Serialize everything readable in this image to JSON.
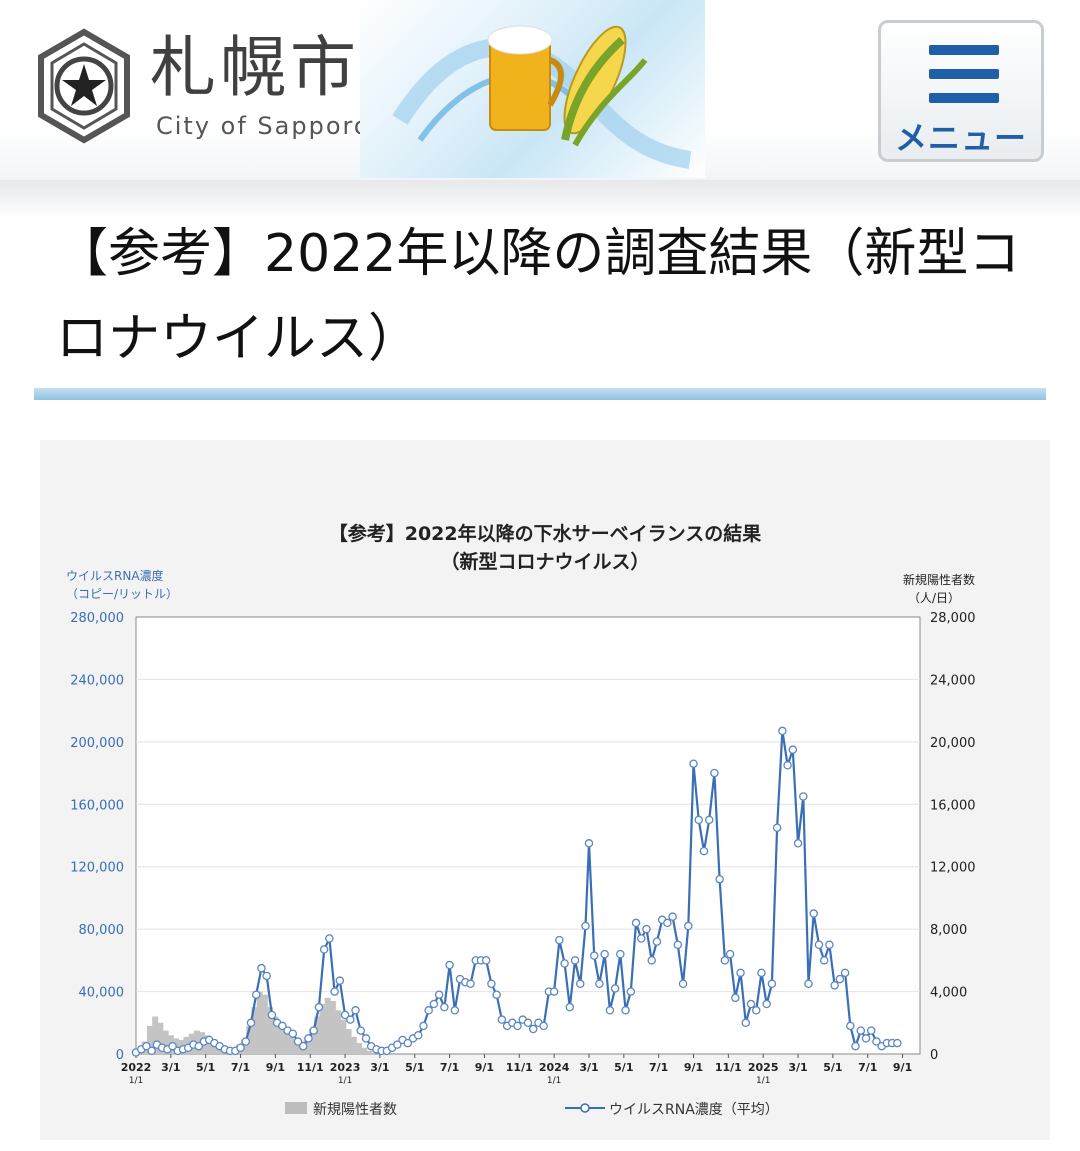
{
  "header": {
    "city_name": "札幌市",
    "city_name_en": "City of Sapporo",
    "menu_label": "メニュー"
  },
  "page": {
    "title": "【参考】2022年以降の調査結果（新型コロナウイルス）"
  },
  "colors": {
    "accent": "#1f5ea8",
    "line": "#3a6fb6",
    "bars": "#bdbdbd"
  },
  "icons": {
    "emblem": "sapporo-emblem-icon",
    "menu": "hamburger-icon"
  },
  "chart_data": {
    "type": "line",
    "title_line1": "【参考】2022年以降の下水サーベイランスの結果",
    "title_line2": "（新型コロナウイルス）",
    "ylabel_left_1": "ウイルスRNA濃度",
    "ylabel_left_2": "（コピー/リットル）",
    "ylabel_right_1": "新規陽性者数",
    "ylabel_right_2": "（人/日）",
    "ylim_left": [
      0,
      280000
    ],
    "ylim_right": [
      0,
      28000
    ],
    "yticks_left": [
      "0",
      "40,000",
      "80,000",
      "120,000",
      "160,000",
      "200,000",
      "240,000",
      "280,000"
    ],
    "yticks_right": [
      "0",
      "4,000",
      "8,000",
      "12,000",
      "16,000",
      "20,000",
      "24,000",
      "28,000"
    ],
    "xticks": [
      {
        "label": "2022",
        "sub": "1/1",
        "x": 0
      },
      {
        "label": "3/1",
        "sub": "",
        "x": 2
      },
      {
        "label": "5/1",
        "sub": "",
        "x": 4
      },
      {
        "label": "7/1",
        "sub": "",
        "x": 6
      },
      {
        "label": "9/1",
        "sub": "",
        "x": 8
      },
      {
        "label": "11/1",
        "sub": "",
        "x": 10
      },
      {
        "label": "2023",
        "sub": "1/1",
        "x": 12
      },
      {
        "label": "3/1",
        "sub": "",
        "x": 14
      },
      {
        "label": "5/1",
        "sub": "",
        "x": 16
      },
      {
        "label": "7/1",
        "sub": "",
        "x": 18
      },
      {
        "label": "9/1",
        "sub": "",
        "x": 20
      },
      {
        "label": "11/1",
        "sub": "",
        "x": 22
      },
      {
        "label": "2024",
        "sub": "1/1",
        "x": 24
      },
      {
        "label": "3/1",
        "sub": "",
        "x": 26
      },
      {
        "label": "5/1",
        "sub": "",
        "x": 28
      },
      {
        "label": "7/1",
        "sub": "",
        "x": 30
      },
      {
        "label": "9/1",
        "sub": "",
        "x": 32
      },
      {
        "label": "11/1",
        "sub": "",
        "x": 34
      },
      {
        "label": "2025",
        "sub": "1/1",
        "x": 36
      },
      {
        "label": "3/1",
        "sub": "",
        "x": 38
      },
      {
        "label": "5/1",
        "sub": "",
        "x": 40
      },
      {
        "label": "7/1",
        "sub": "",
        "x": 42
      },
      {
        "label": "9/1",
        "sub": "",
        "x": 44
      }
    ],
    "xlim": [
      0,
      45
    ],
    "series": [
      {
        "name": "ウイルスRNA濃度（平均）",
        "axis": "left",
        "points": [
          [
            0,
            1000
          ],
          [
            0.3,
            3000
          ],
          [
            0.6,
            5000
          ],
          [
            0.9,
            2000
          ],
          [
            1.2,
            6000
          ],
          [
            1.5,
            4000
          ],
          [
            1.8,
            3000
          ],
          [
            2.1,
            5000
          ],
          [
            2.4,
            2000
          ],
          [
            2.7,
            3000
          ],
          [
            3.0,
            4000
          ],
          [
            3.3,
            6000
          ],
          [
            3.6,
            5000
          ],
          [
            3.9,
            8000
          ],
          [
            4.2,
            9000
          ],
          [
            4.5,
            7000
          ],
          [
            4.8,
            5000
          ],
          [
            5.1,
            3000
          ],
          [
            5.4,
            2000
          ],
          [
            5.7,
            2000
          ],
          [
            6.0,
            4000
          ],
          [
            6.3,
            8000
          ],
          [
            6.6,
            20000
          ],
          [
            6.9,
            38000
          ],
          [
            7.2,
            55000
          ],
          [
            7.5,
            50000
          ],
          [
            7.8,
            25000
          ],
          [
            8.1,
            20000
          ],
          [
            8.4,
            18000
          ],
          [
            8.7,
            15000
          ],
          [
            9.0,
            13000
          ],
          [
            9.3,
            8000
          ],
          [
            9.6,
            5000
          ],
          [
            9.9,
            10000
          ],
          [
            10.2,
            15000
          ],
          [
            10.5,
            30000
          ],
          [
            10.8,
            67000
          ],
          [
            11.1,
            74000
          ],
          [
            11.4,
            40000
          ],
          [
            11.7,
            47000
          ],
          [
            12.0,
            25000
          ],
          [
            12.3,
            22000
          ],
          [
            12.6,
            28000
          ],
          [
            12.9,
            15000
          ],
          [
            13.2,
            10000
          ],
          [
            13.5,
            5000
          ],
          [
            13.8,
            3000
          ],
          [
            14.1,
            2000
          ],
          [
            14.4,
            2000
          ],
          [
            14.7,
            4000
          ],
          [
            15.0,
            6000
          ],
          [
            15.3,
            9000
          ],
          [
            15.6,
            7000
          ],
          [
            15.9,
            10000
          ],
          [
            16.2,
            12000
          ],
          [
            16.5,
            18000
          ],
          [
            16.8,
            28000
          ],
          [
            17.1,
            32000
          ],
          [
            17.4,
            38000
          ],
          [
            17.7,
            30000
          ],
          [
            18.0,
            57000
          ],
          [
            18.3,
            28000
          ],
          [
            18.6,
            48000
          ],
          [
            18.9,
            46000
          ],
          [
            19.2,
            45000
          ],
          [
            19.5,
            60000
          ],
          [
            19.8,
            60000
          ],
          [
            20.1,
            60000
          ],
          [
            20.4,
            45000
          ],
          [
            20.7,
            38000
          ],
          [
            21.0,
            22000
          ],
          [
            21.3,
            18000
          ],
          [
            21.6,
            20000
          ],
          [
            21.9,
            18000
          ],
          [
            22.2,
            22000
          ],
          [
            22.5,
            20000
          ],
          [
            22.8,
            16000
          ],
          [
            23.1,
            20000
          ],
          [
            23.4,
            18000
          ],
          [
            23.7,
            40000
          ],
          [
            24.0,
            40000
          ],
          [
            24.3,
            73000
          ],
          [
            24.6,
            58000
          ],
          [
            24.9,
            30000
          ],
          [
            25.2,
            60000
          ],
          [
            25.5,
            45000
          ],
          [
            25.8,
            82000
          ],
          [
            26.0,
            135000
          ],
          [
            26.3,
            63000
          ],
          [
            26.6,
            45000
          ],
          [
            26.9,
            64000
          ],
          [
            27.2,
            28000
          ],
          [
            27.5,
            42000
          ],
          [
            27.8,
            64000
          ],
          [
            28.1,
            28000
          ],
          [
            28.4,
            40000
          ],
          [
            28.7,
            84000
          ],
          [
            29.0,
            74000
          ],
          [
            29.3,
            80000
          ],
          [
            29.6,
            60000
          ],
          [
            29.9,
            72000
          ],
          [
            30.2,
            86000
          ],
          [
            30.5,
            84000
          ],
          [
            30.8,
            88000
          ],
          [
            31.1,
            70000
          ],
          [
            31.4,
            45000
          ],
          [
            31.7,
            82000
          ],
          [
            32.0,
            186000
          ],
          [
            32.3,
            150000
          ],
          [
            32.6,
            130000
          ],
          [
            32.9,
            150000
          ],
          [
            33.2,
            180000
          ],
          [
            33.5,
            112000
          ],
          [
            33.8,
            60000
          ],
          [
            34.1,
            64000
          ],
          [
            34.4,
            36000
          ],
          [
            34.7,
            52000
          ],
          [
            35.0,
            20000
          ],
          [
            35.3,
            32000
          ],
          [
            35.6,
            28000
          ],
          [
            35.9,
            52000
          ],
          [
            36.2,
            32000
          ],
          [
            36.5,
            45000
          ],
          [
            36.8,
            145000
          ],
          [
            37.1,
            207000
          ],
          [
            37.4,
            185000
          ],
          [
            37.7,
            195000
          ],
          [
            38.0,
            135000
          ],
          [
            38.3,
            165000
          ],
          [
            38.6,
            45000
          ],
          [
            38.9,
            90000
          ],
          [
            39.2,
            70000
          ],
          [
            39.5,
            60000
          ],
          [
            39.8,
            70000
          ],
          [
            40.1,
            44000
          ],
          [
            40.4,
            48000
          ],
          [
            40.7,
            52000
          ],
          [
            41.0,
            18000
          ],
          [
            41.3,
            5000
          ],
          [
            41.6,
            15000
          ],
          [
            41.9,
            10000
          ],
          [
            42.2,
            15000
          ],
          [
            42.5,
            8000
          ],
          [
            42.8,
            5000
          ],
          [
            43.1,
            7000
          ],
          [
            43.4,
            7000
          ],
          [
            43.7,
            7000
          ]
        ]
      },
      {
        "name": "新規陽性者数",
        "axis": "right",
        "bars": [
          [
            0.2,
            300
          ],
          [
            0.5,
            800
          ],
          [
            0.8,
            1800
          ],
          [
            1.1,
            2400
          ],
          [
            1.4,
            2000
          ],
          [
            1.7,
            1500
          ],
          [
            2.0,
            1200
          ],
          [
            2.3,
            1000
          ],
          [
            2.6,
            900
          ],
          [
            2.9,
            1100
          ],
          [
            3.2,
            1300
          ],
          [
            3.5,
            1500
          ],
          [
            3.8,
            1400
          ],
          [
            4.1,
            1200
          ],
          [
            4.4,
            900
          ],
          [
            4.7,
            700
          ],
          [
            5.0,
            500
          ],
          [
            5.3,
            400
          ],
          [
            5.6,
            400
          ],
          [
            5.9,
            600
          ],
          [
            6.2,
            900
          ],
          [
            6.5,
            1800
          ],
          [
            6.8,
            3000
          ],
          [
            7.1,
            4000
          ],
          [
            7.4,
            3800
          ],
          [
            7.7,
            3000
          ],
          [
            8.0,
            2400
          ],
          [
            8.3,
            1800
          ],
          [
            8.6,
            1400
          ],
          [
            8.9,
            1100
          ],
          [
            9.2,
            900
          ],
          [
            9.5,
            800
          ],
          [
            9.8,
            1100
          ],
          [
            10.1,
            1600
          ],
          [
            10.4,
            2400
          ],
          [
            10.7,
            3200
          ],
          [
            11.0,
            3600
          ],
          [
            11.3,
            3400
          ],
          [
            11.6,
            2800
          ],
          [
            11.9,
            2200
          ],
          [
            12.2,
            1600
          ],
          [
            12.5,
            1100
          ],
          [
            12.8,
            700
          ],
          [
            13.1,
            400
          ],
          [
            13.4,
            200
          ]
        ]
      }
    ],
    "legend": [
      "新規陽性者数",
      "ウイルスRNA濃度（平均）"
    ]
  }
}
